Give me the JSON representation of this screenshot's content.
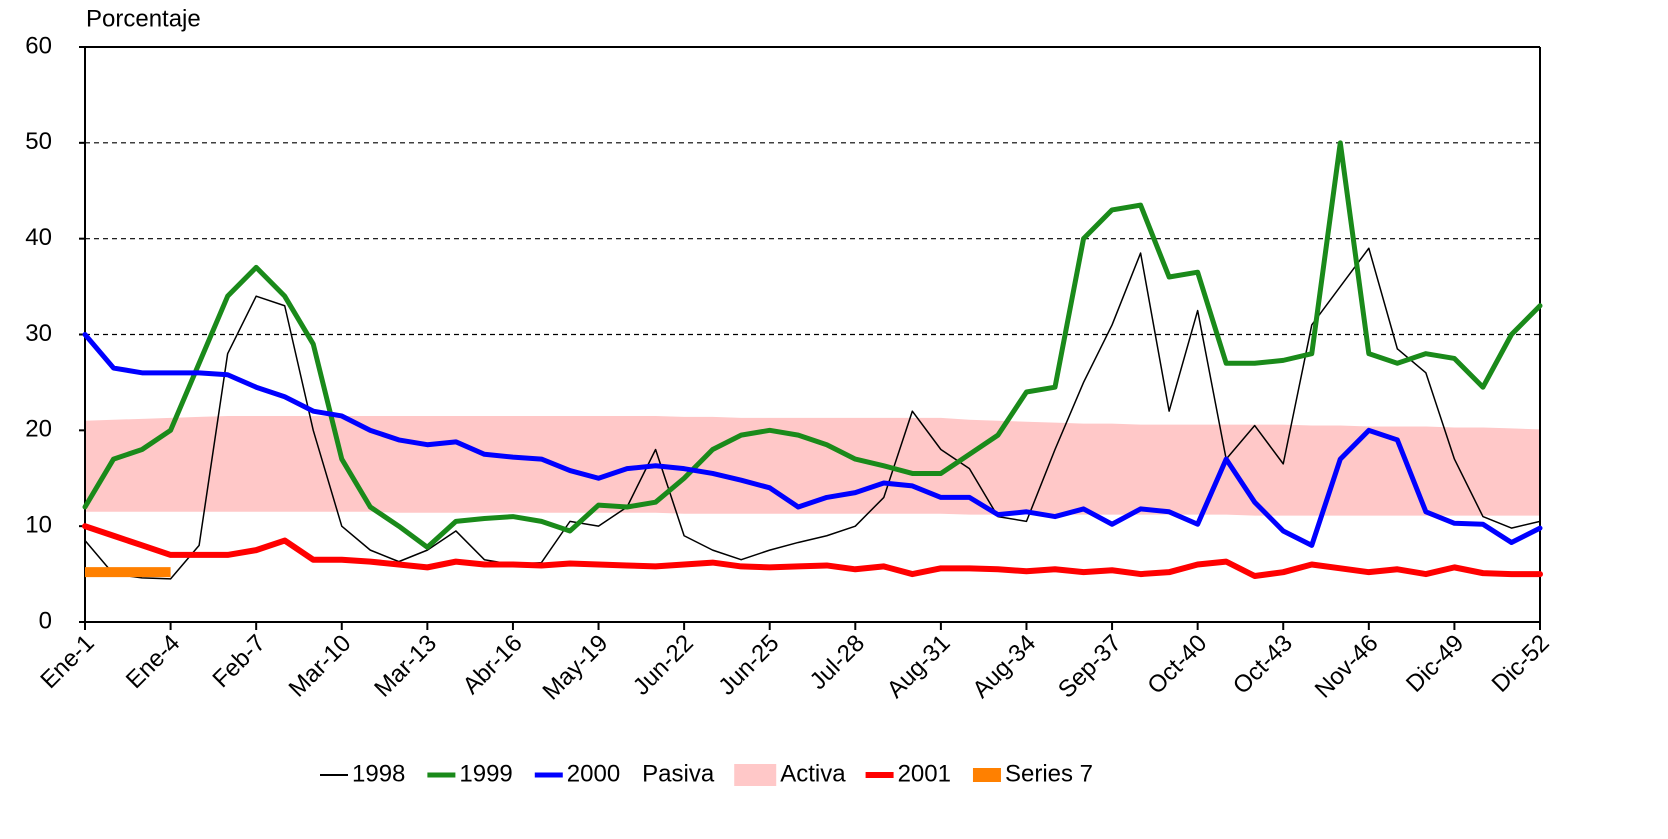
{
  "chart_data": {
    "type": "line",
    "ylabel": "Porcentaje",
    "categories": [
      "Ene-1",
      null,
      null,
      "Ene-4",
      null,
      null,
      "Feb-7",
      null,
      null,
      "Mar-10",
      null,
      null,
      "Mar-13",
      null,
      null,
      "Abr-16",
      null,
      null,
      "May-19",
      null,
      null,
      "Jun-22",
      null,
      null,
      "Jun-25",
      null,
      null,
      "Jul-28",
      null,
      null,
      "Aug-31",
      null,
      null,
      "Aug-34",
      null,
      null,
      "Sep-37",
      null,
      null,
      "Oct-40",
      null,
      null,
      "Oct-43",
      null,
      null,
      "Nov-46",
      null,
      null,
      "Dic-49",
      null,
      null,
      "Dic-52"
    ],
    "ylim": [
      0,
      60
    ],
    "yticks": [
      0,
      10,
      20,
      30,
      40,
      50,
      60
    ],
    "grid": true,
    "legend": "bottom",
    "series": [
      {
        "name": "1998",
        "color": "#000000",
        "values": [
          8.5,
          5,
          4.6,
          4.5,
          8,
          28,
          34,
          33,
          20,
          10,
          7.5,
          6.3,
          7.5,
          9.5,
          6.5,
          6,
          6.2,
          10.5,
          10,
          12,
          18,
          9,
          7.5,
          6.5,
          7.5,
          8.3,
          9,
          10,
          13,
          22,
          18,
          16,
          11,
          10.5,
          18,
          25,
          31,
          38.5,
          22,
          32.5,
          17,
          20.5,
          16.5,
          31,
          35,
          39,
          28.5,
          26,
          17,
          11,
          9.8,
          10.5
        ]
      },
      {
        "name": "1999",
        "color": "#1a8a1a",
        "values": [
          12,
          17,
          18,
          20,
          27,
          34,
          37,
          34,
          29,
          17,
          12,
          10,
          7.8,
          10.5,
          10.8,
          11,
          10.5,
          9.5,
          12.2,
          12,
          12.5,
          15,
          18,
          19.5,
          20,
          19.5,
          18.5,
          17,
          16.3,
          15.5,
          15.5,
          17.5,
          19.5,
          24,
          24.5,
          40,
          43,
          43.5,
          36,
          36.5,
          27,
          27,
          27.3,
          28,
          50,
          28,
          27,
          28,
          27.5,
          24.5,
          30,
          33
        ]
      },
      {
        "name": "2000",
        "color": "#0000ff",
        "values": [
          30,
          26.5,
          26,
          26,
          26,
          25.8,
          24.5,
          23.5,
          22,
          21.5,
          20,
          19,
          18.5,
          18.8,
          17.5,
          17.2,
          17,
          15.8,
          15,
          16,
          16.3,
          16,
          15.5,
          14.8,
          14,
          12,
          13,
          13.5,
          14.5,
          14.2,
          13,
          13,
          11.2,
          11.5,
          11,
          11.8,
          10.2,
          11.8,
          11.5,
          10.2,
          17,
          12.5,
          9.5,
          8,
          17,
          20,
          19,
          11.5,
          10.3,
          10.2,
          8.3,
          9.8
        ]
      },
      {
        "name": "Pasiva",
        "type": "area",
        "color": "#ffffff",
        "values": [
          11.5,
          11.5,
          11.5,
          11.5,
          11.5,
          11.5,
          11.5,
          11.5,
          11.5,
          11.5,
          11.5,
          11.4,
          11.4,
          11.4,
          11.4,
          11.4,
          11.4,
          11.4,
          11.4,
          11.4,
          11.4,
          11.3,
          11.3,
          11.3,
          11.3,
          11.3,
          11.3,
          11.3,
          11.3,
          11.3,
          11.3,
          11.2,
          11.2,
          11.2,
          11.2,
          11.2,
          11.2,
          11.2,
          11.2,
          11.2,
          11.2,
          11.1,
          11.1,
          11.1,
          11.1,
          11.1,
          11.1,
          11.1,
          11.1,
          11.1,
          11.1,
          11.1
        ]
      },
      {
        "name": "Activa",
        "type": "area",
        "color": "#ffc8c8",
        "values": [
          9.5,
          9.6,
          9.7,
          9.8,
          9.9,
          10,
          10,
          10,
          10,
          10,
          10,
          10.1,
          10.1,
          10.1,
          10.1,
          10.1,
          10.1,
          10.1,
          10.1,
          10.1,
          10.1,
          10.1,
          10.1,
          10,
          10,
          10,
          10,
          10,
          10,
          10,
          10,
          9.9,
          9.8,
          9.7,
          9.6,
          9.5,
          9.5,
          9.4,
          9.4,
          9.4,
          9.4,
          9.5,
          9.5,
          9.4,
          9.4,
          9.3,
          9.3,
          9.3,
          9.2,
          9.2,
          9.1,
          9
        ]
      },
      {
        "name": "2001",
        "color": "#ff0000",
        "values": [
          10,
          9,
          8,
          7,
          7,
          7,
          7.5,
          8.5,
          6.5,
          6.5,
          6.3,
          6,
          5.7,
          6.3,
          6,
          6,
          5.9,
          6.1,
          6,
          5.9,
          5.8,
          6,
          6.2,
          5.8,
          5.7,
          5.8,
          5.9,
          5.5,
          5.8,
          5,
          5.6,
          5.6,
          5.5,
          5.3,
          5.5,
          5.2,
          5.4,
          5,
          5.2,
          6,
          6.3,
          4.8,
          5.2,
          6,
          5.6,
          5.2,
          5.5,
          5,
          5.7,
          5.1,
          5,
          5
        ]
      },
      {
        "name": "Series 7",
        "color": "#ff8000",
        "values": [
          5.2,
          5.2,
          5.2,
          5.2,
          null,
          null,
          null,
          null,
          null,
          null,
          null,
          null,
          null,
          null,
          null,
          null,
          null,
          null,
          null,
          null,
          null,
          null,
          null,
          null,
          null,
          null,
          null,
          null,
          null,
          null,
          null,
          null,
          null,
          null,
          null,
          null,
          null,
          null,
          null,
          null,
          null,
          null,
          null,
          null,
          null,
          null,
          null,
          null,
          null,
          null,
          null,
          null
        ]
      }
    ]
  }
}
